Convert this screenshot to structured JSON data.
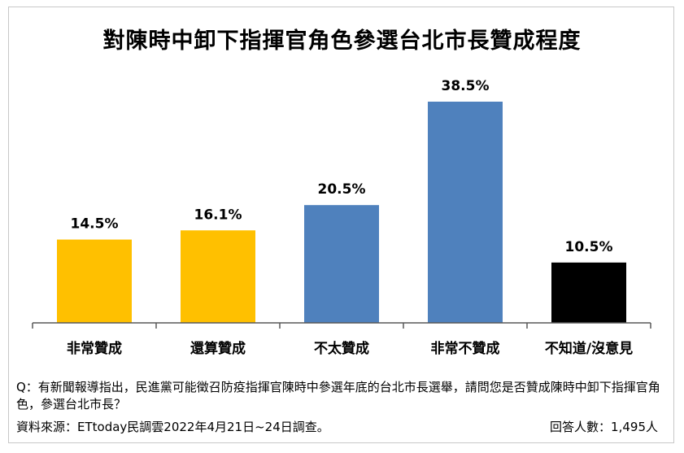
{
  "chart_data": {
    "type": "bar",
    "title": "對陳時中卸下指揮官角色參選台北市長贊成程度",
    "categories": [
      "非常贊成",
      "還算贊成",
      "不太贊成",
      "非常不贊成",
      "不知道/沒意見"
    ],
    "values": [
      14.5,
      16.1,
      20.5,
      38.5,
      10.5
    ],
    "value_labels": [
      "14.5%",
      "16.1%",
      "20.5%",
      "38.5%",
      "10.5%"
    ],
    "colors": [
      "#FFC000",
      "#FFC000",
      "#4F81BD",
      "#4F81BD",
      "#000000"
    ],
    "ylim": [
      0,
      50
    ],
    "grid": false,
    "legend": "none"
  },
  "footer": {
    "question": "Q：有新聞報導指出，民進黨可能徵召防疫指揮官陳時中參選年底的台北市長選舉，請問您是否贊成陳時中卸下指揮官角色，參選台北市長？",
    "source": "資料來源：ETtoday民調雲2022年4月21日~24日調查。",
    "respondents": "回答人數：1,495人"
  }
}
